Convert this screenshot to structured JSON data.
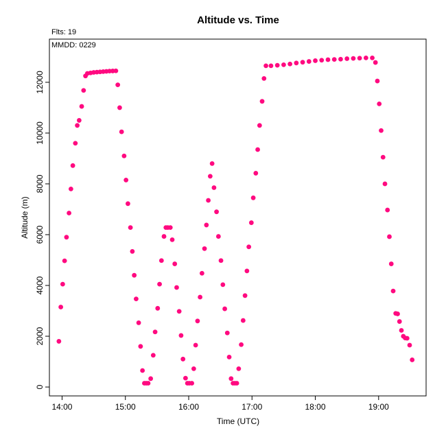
{
  "chart_data": {
    "type": "scatter",
    "title": "Altitude  vs. Time",
    "subtitle": "Flts: 19",
    "annotation": "MMDD: 0229",
    "xlabel": "Time (UTC)",
    "ylabel": "Altitude (m)",
    "xlim": [
      13.8,
      19.75
    ],
    "ylim": [
      -350,
      13700
    ],
    "x_ticks": [
      {
        "value": 14,
        "label": "14:00"
      },
      {
        "value": 15,
        "label": "15:00"
      },
      {
        "value": 16,
        "label": "16:00"
      },
      {
        "value": 17,
        "label": "17:00"
      },
      {
        "value": 18,
        "label": "18:00"
      },
      {
        "value": 19,
        "label": "19:00"
      }
    ],
    "y_ticks": [
      {
        "value": 0,
        "label": "0"
      },
      {
        "value": 2000,
        "label": "2000"
      },
      {
        "value": 4000,
        "label": "4000"
      },
      {
        "value": 6000,
        "label": "6000"
      },
      {
        "value": 8000,
        "label": "8000"
      },
      {
        "value": 10000,
        "label": "10000"
      },
      {
        "value": 12000,
        "label": "12000"
      }
    ],
    "point_color": "#ff0a80",
    "grid": false,
    "series": [
      {
        "points": [
          [
            13.95,
            1800
          ],
          [
            13.98,
            3150
          ],
          [
            14.01,
            4050
          ],
          [
            14.04,
            4970
          ],
          [
            14.07,
            5900
          ],
          [
            14.11,
            6850
          ],
          [
            14.14,
            7800
          ],
          [
            14.17,
            8720
          ],
          [
            14.21,
            9600
          ],
          [
            14.24,
            10300
          ],
          [
            14.27,
            10500
          ],
          [
            14.31,
            11050
          ],
          [
            14.34,
            11680
          ],
          [
            14.37,
            12250
          ],
          [
            14.4,
            12350
          ],
          [
            14.45,
            12370
          ],
          [
            14.5,
            12390
          ],
          [
            14.55,
            12400
          ],
          [
            14.6,
            12410
          ],
          [
            14.65,
            12420
          ],
          [
            14.7,
            12430
          ],
          [
            14.75,
            12440
          ],
          [
            14.8,
            12445
          ],
          [
            14.85,
            12450
          ],
          [
            14.88,
            11900
          ],
          [
            14.91,
            11000
          ],
          [
            14.94,
            10050
          ],
          [
            14.98,
            9100
          ],
          [
            15.01,
            8150
          ],
          [
            15.04,
            7220
          ],
          [
            15.08,
            6280
          ],
          [
            15.11,
            5340
          ],
          [
            15.14,
            4400
          ],
          [
            15.17,
            3470
          ],
          [
            15.21,
            2530
          ],
          [
            15.24,
            1600
          ],
          [
            15.27,
            650
          ],
          [
            15.3,
            150
          ],
          [
            15.33,
            150
          ],
          [
            15.36,
            150
          ],
          [
            15.4,
            330
          ],
          [
            15.44,
            1250
          ],
          [
            15.47,
            2170
          ],
          [
            15.51,
            3100
          ],
          [
            15.54,
            4050
          ],
          [
            15.57,
            4980
          ],
          [
            15.61,
            5930
          ],
          [
            15.64,
            6280
          ],
          [
            15.67,
            6280
          ],
          [
            15.71,
            6280
          ],
          [
            15.74,
            5800
          ],
          [
            15.78,
            4850
          ],
          [
            15.81,
            3920
          ],
          [
            15.85,
            2980
          ],
          [
            15.88,
            2030
          ],
          [
            15.91,
            1100
          ],
          [
            15.95,
            350
          ],
          [
            15.98,
            150
          ],
          [
            16.01,
            150
          ],
          [
            16.05,
            150
          ],
          [
            16.08,
            720
          ],
          [
            16.11,
            1650
          ],
          [
            16.14,
            2600
          ],
          [
            16.18,
            3540
          ],
          [
            16.21,
            4480
          ],
          [
            16.25,
            5450
          ],
          [
            16.28,
            6380
          ],
          [
            16.31,
            7350
          ],
          [
            16.34,
            8300
          ],
          [
            16.37,
            8800
          ],
          [
            16.4,
            7850
          ],
          [
            16.44,
            6900
          ],
          [
            16.47,
            5930
          ],
          [
            16.51,
            4980
          ],
          [
            16.54,
            4030
          ],
          [
            16.57,
            3080
          ],
          [
            16.61,
            2130
          ],
          [
            16.64,
            1180
          ],
          [
            16.67,
            330
          ],
          [
            16.7,
            150
          ],
          [
            16.73,
            150
          ],
          [
            16.76,
            150
          ],
          [
            16.79,
            720
          ],
          [
            16.83,
            1670
          ],
          [
            16.86,
            2620
          ],
          [
            16.89,
            3600
          ],
          [
            16.92,
            4570
          ],
          [
            16.95,
            5520
          ],
          [
            16.99,
            6470
          ],
          [
            17.02,
            7450
          ],
          [
            17.06,
            8420
          ],
          [
            17.09,
            9350
          ],
          [
            17.12,
            10300
          ],
          [
            17.16,
            11250
          ],
          [
            17.19,
            12150
          ],
          [
            17.22,
            12650
          ],
          [
            17.3,
            12650
          ],
          [
            17.4,
            12670
          ],
          [
            17.5,
            12690
          ],
          [
            17.6,
            12720
          ],
          [
            17.7,
            12760
          ],
          [
            17.8,
            12790
          ],
          [
            17.9,
            12820
          ],
          [
            18.0,
            12850
          ],
          [
            18.1,
            12870
          ],
          [
            18.2,
            12890
          ],
          [
            18.3,
            12900
          ],
          [
            18.4,
            12910
          ],
          [
            18.5,
            12930
          ],
          [
            18.6,
            12940
          ],
          [
            18.7,
            12950
          ],
          [
            18.8,
            12960
          ],
          [
            18.9,
            12960
          ],
          [
            18.95,
            12780
          ],
          [
            18.98,
            12050
          ],
          [
            19.01,
            11150
          ],
          [
            19.04,
            10100
          ],
          [
            19.07,
            9050
          ],
          [
            19.1,
            8000
          ],
          [
            19.14,
            6970
          ],
          [
            19.17,
            5920
          ],
          [
            19.2,
            4850
          ],
          [
            19.23,
            3780
          ],
          [
            19.27,
            2900
          ],
          [
            19.3,
            2880
          ],
          [
            19.33,
            2580
          ],
          [
            19.36,
            2230
          ],
          [
            19.39,
            2000
          ],
          [
            19.42,
            1930
          ],
          [
            19.45,
            1920
          ],
          [
            19.49,
            1650
          ],
          [
            19.53,
            1070
          ]
        ]
      }
    ]
  }
}
